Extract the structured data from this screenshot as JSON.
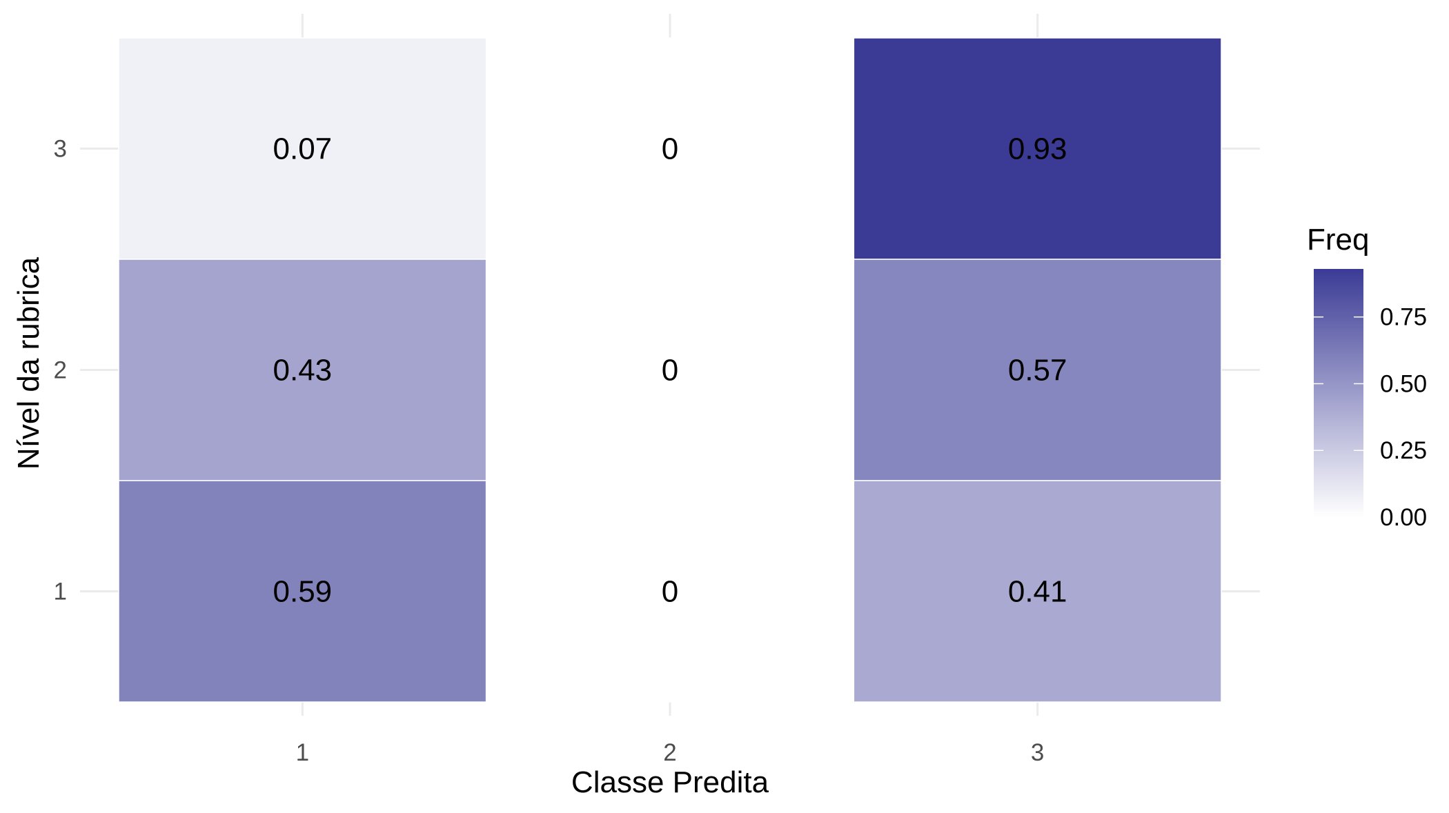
{
  "chart_data": {
    "type": "heatmap",
    "xlabel": "Classe Predita",
    "ylabel": "Nível da rubrica",
    "x_categories": [
      "1",
      "2",
      "3"
    ],
    "y_categories": [
      "1",
      "2",
      "3"
    ],
    "cells": [
      {
        "x": "1",
        "y": "3",
        "value": 0.07,
        "label": "0.07"
      },
      {
        "x": "2",
        "y": "3",
        "value": 0,
        "label": "0"
      },
      {
        "x": "3",
        "y": "3",
        "value": 0.93,
        "label": "0.93"
      },
      {
        "x": "1",
        "y": "2",
        "value": 0.43,
        "label": "0.43"
      },
      {
        "x": "2",
        "y": "2",
        "value": 0,
        "label": "0"
      },
      {
        "x": "3",
        "y": "2",
        "value": 0.57,
        "label": "0.57"
      },
      {
        "x": "1",
        "y": "1",
        "value": 0.59,
        "label": "0.59"
      },
      {
        "x": "2",
        "y": "1",
        "value": 0,
        "label": "0"
      },
      {
        "x": "3",
        "y": "1",
        "value": 0.41,
        "label": "0.41"
      }
    ],
    "legend": {
      "title": "Freq",
      "placement": "right",
      "range": [
        0,
        0.93
      ],
      "ticks": [
        0,
        0.25,
        0.5,
        0.75
      ],
      "tick_labels": [
        "0.00",
        "0.25",
        "0.50",
        "0.75"
      ],
      "color_low": "#ffffff",
      "color_high": "#3b3b96"
    },
    "grid": true
  }
}
